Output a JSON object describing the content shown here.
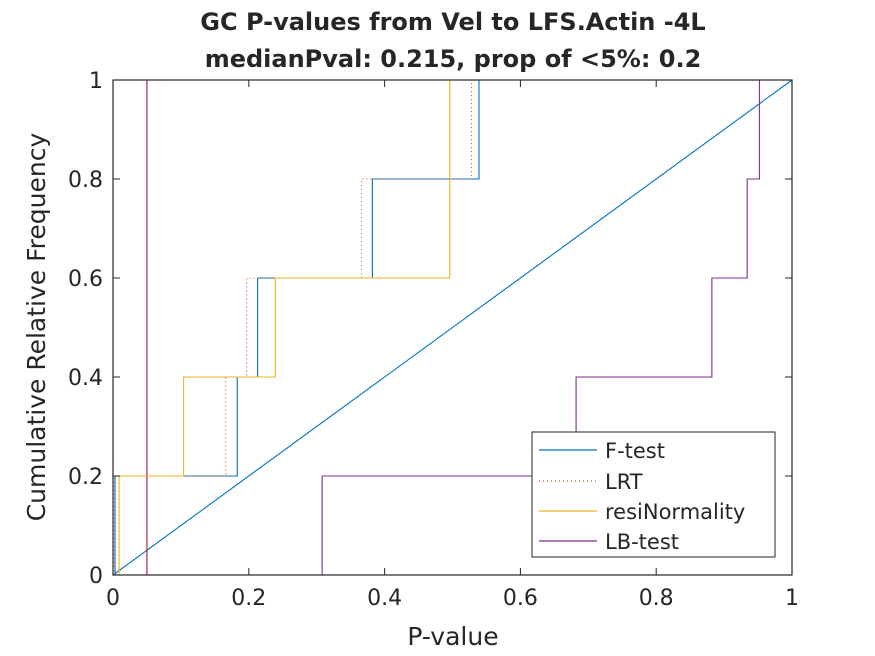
{
  "chart_data": {
    "type": "line",
    "title": [
      "GC P-values from Vel to LFS.Actin -4L",
      "medianPval: 0.215, prop of <5%: 0.2"
    ],
    "xlabel": "P-value",
    "ylabel": "Cumulative Relative Frequency",
    "xlim": [
      0,
      1
    ],
    "ylim": [
      0,
      1
    ],
    "xticks": [
      0,
      0.2,
      0.4,
      0.6,
      0.8,
      1
    ],
    "xtick_labels": [
      "0",
      "0.2",
      "0.4",
      "0.6",
      "0.8",
      "1"
    ],
    "yticks": [
      0,
      0.2,
      0.4,
      0.6,
      0.8,
      1
    ],
    "ytick_labels": [
      "0",
      "0.2",
      "0.4",
      "0.6",
      "0.8",
      "1"
    ],
    "grid": false,
    "legend_position": "bottom-right",
    "series": [
      {
        "name": "F-test",
        "style": "solid",
        "color": "#0072BD",
        "type": "ecdf",
        "x": [
          0.003,
          0.183,
          0.213,
          0.382,
          0.539
        ]
      },
      {
        "name": "LRT",
        "style": "dotted",
        "color": "#D95319",
        "type": "ecdf",
        "x": [
          0.002,
          0.166,
          0.197,
          0.366,
          0.528
        ]
      },
      {
        "name": "resiNormality",
        "style": "solid",
        "color": "#EDB120",
        "type": "ecdf",
        "x": [
          0.009,
          0.104,
          0.239,
          0.496,
          0.496
        ]
      },
      {
        "name": "LB-test",
        "style": "solid",
        "color": "#7E2F8E",
        "type": "ecdf",
        "x": [
          0.308,
          0.682,
          0.882,
          0.934,
          0.952
        ]
      }
    ],
    "reference_lines": [
      {
        "kind": "diagonal",
        "from": [
          0,
          0
        ],
        "to": [
          1,
          1
        ],
        "color": "#0072BD"
      },
      {
        "kind": "vertical",
        "x": 0.05,
        "color": "#A2142F"
      }
    ]
  }
}
